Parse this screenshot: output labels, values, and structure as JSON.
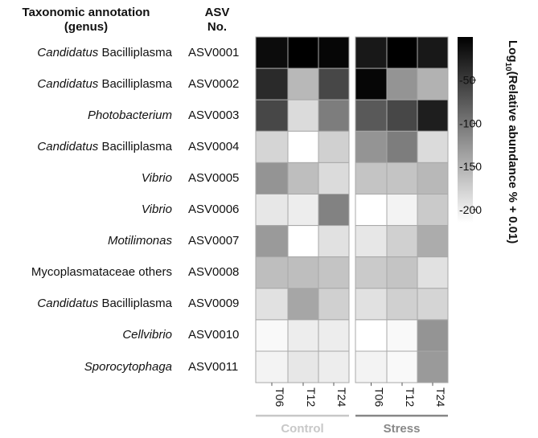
{
  "chart_data": {
    "type": "heatmap",
    "headers": {
      "genus_line1": "Taxonomic annotation",
      "genus_line2": "(genus)",
      "asv_line1": "ASV",
      "asv_line2": "No."
    },
    "rows": [
      {
        "genus_italic": "Candidatus",
        "genus_rest": " Bacilliplasma",
        "asv": "ASV0001"
      },
      {
        "genus_italic": "Candidatus",
        "genus_rest": " Bacilliplasma",
        "asv": "ASV0002"
      },
      {
        "genus_italic": "Photobacterium",
        "genus_rest": "",
        "asv": "ASV0003"
      },
      {
        "genus_italic": "Candidatus",
        "genus_rest": " Bacilliplasma",
        "asv": "ASV0004"
      },
      {
        "genus_italic": "Vibrio",
        "genus_rest": "",
        "asv": "ASV0005"
      },
      {
        "genus_italic": "Vibrio",
        "genus_rest": "",
        "asv": "ASV0006"
      },
      {
        "genus_italic": "Motilimonas",
        "genus_rest": "",
        "asv": "ASV0007"
      },
      {
        "genus_italic": "",
        "genus_rest": "Mycoplasmataceae others",
        "asv": "ASV0008"
      },
      {
        "genus_italic": "Candidatus",
        "genus_rest": " Bacilliplasma",
        "asv": "ASV0009"
      },
      {
        "genus_italic": "Cellvibrio",
        "genus_rest": "",
        "asv": "ASV0010"
      },
      {
        "genus_italic": "Sporocytophaga",
        "genus_rest": "",
        "asv": "ASV0011"
      }
    ],
    "columns": [
      "T06",
      "T12",
      "T24",
      "T06",
      "T12",
      "T24"
    ],
    "groups": [
      {
        "name": "Control",
        "color": "#c8c8c8",
        "columns": [
          0,
          1,
          2
        ]
      },
      {
        "name": "Stress",
        "color": "#888888",
        "columns": [
          3,
          4,
          5
        ]
      }
    ],
    "values": [
      [
        -10,
        0,
        -5,
        -20,
        0,
        -20
      ],
      [
        -35,
        -155,
        -60,
        -5,
        -125,
        -150
      ],
      [
        -60,
        -185,
        -105,
        -75,
        -60,
        -25
      ],
      [
        -180,
        -215,
        -175,
        -125,
        -105,
        -185
      ],
      [
        -125,
        -160,
        -185,
        -165,
        -165,
        -155
      ],
      [
        -195,
        -200,
        -110,
        -215,
        -205,
        -170
      ],
      [
        -130,
        -215,
        -190,
        -195,
        -175,
        -145
      ],
      [
        -160,
        -160,
        -165,
        -170,
        -165,
        -190
      ],
      [
        -190,
        -140,
        -175,
        -190,
        -175,
        -180
      ],
      [
        -210,
        -200,
        -200,
        -215,
        -210,
        -125
      ],
      [
        -205,
        -195,
        -200,
        -205,
        -210,
        -130
      ]
    ],
    "colorbar": {
      "title": "Log10(Relative abundance % + 0.01)",
      "title_main": "Log",
      "title_sub": "10",
      "title_rest": "(Relative abundance % + 0.01)",
      "min": -215,
      "max": 0,
      "ticks": [
        -50,
        -100,
        -150,
        -200
      ],
      "colors": [
        "#ffffff",
        "#000000"
      ]
    }
  }
}
